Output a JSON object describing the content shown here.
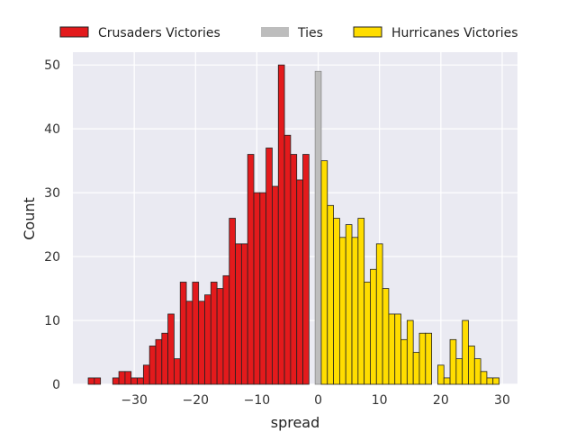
{
  "chart_data": {
    "type": "bar",
    "xlabel": "spread",
    "ylabel": "Count",
    "xlim": [
      -40,
      32.5
    ],
    "ylim": [
      0,
      52
    ],
    "grid": true,
    "legend_position": "top",
    "bin_width": 1,
    "x_ticks": [
      -30,
      -20,
      -10,
      0,
      10,
      20,
      30
    ],
    "y_ticks": [
      0,
      10,
      20,
      30,
      40,
      50
    ],
    "series": [
      {
        "name": "Crusaders Victories",
        "color": "#e31a1c",
        "x": [
          -37,
          -36,
          -35,
          -34,
          -33,
          -32,
          -31,
          -30,
          -29,
          -28,
          -27,
          -26,
          -25,
          -24,
          -23,
          -22,
          -21,
          -20,
          -19,
          -18,
          -17,
          -16,
          -15,
          -14,
          -13,
          -12,
          -11,
          -10,
          -9,
          -8,
          -7,
          -6,
          -5,
          -4,
          -3,
          -2,
          -1
        ],
        "values": [
          1,
          1,
          0,
          0,
          1,
          2,
          2,
          1,
          1,
          3,
          6,
          7,
          8,
          11,
          4,
          16,
          13,
          16,
          13,
          14,
          16,
          15,
          17,
          26,
          22,
          22,
          36,
          30,
          30,
          37,
          31,
          50,
          39,
          36,
          32,
          36,
          0
        ]
      },
      {
        "name": "Ties",
        "color": "#bdbdbd",
        "x": [
          0
        ],
        "values": [
          49
        ]
      },
      {
        "name": "Hurricanes Victories",
        "color": "#ffdd00",
        "x": [
          1,
          2,
          3,
          4,
          5,
          6,
          7,
          8,
          9,
          10,
          11,
          12,
          13,
          14,
          15,
          16,
          17,
          18,
          19,
          20,
          21,
          22,
          23,
          24,
          25,
          26,
          27,
          28,
          29
        ],
        "values": [
          35,
          28,
          26,
          23,
          25,
          23,
          26,
          16,
          18,
          22,
          15,
          11,
          11,
          7,
          10,
          5,
          8,
          8,
          0,
          3,
          1,
          7,
          4,
          10,
          6,
          4,
          2,
          1,
          1
        ]
      }
    ]
  }
}
